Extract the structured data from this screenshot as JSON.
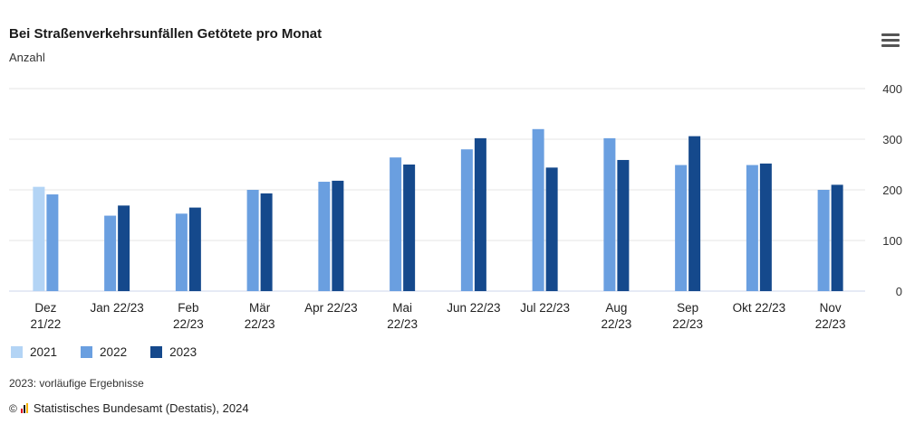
{
  "header": {
    "title": "Bei Straßenverkehrsunfällen Getötete pro Monat",
    "subtitle": "Anzahl"
  },
  "menu_icon": "hamburger-menu-icon",
  "chart_data": {
    "type": "bar",
    "categories": [
      [
        "Dez",
        "21/22"
      ],
      [
        "Jan 22/23"
      ],
      [
        "Feb",
        "22/23"
      ],
      [
        "Mär",
        "22/23"
      ],
      [
        "Apr 22/23"
      ],
      [
        "Mai",
        "22/23"
      ],
      [
        "Jun 22/23"
      ],
      [
        "Jul 22/23"
      ],
      [
        "Aug",
        "22/23"
      ],
      [
        "Sep",
        "22/23"
      ],
      [
        "Okt 22/23"
      ],
      [
        "Nov",
        "22/23"
      ]
    ],
    "series": [
      {
        "name": "2021",
        "color": "#b3d4f5",
        "values": [
          206,
          null,
          null,
          null,
          null,
          null,
          null,
          null,
          null,
          null,
          null,
          null
        ]
      },
      {
        "name": "2022",
        "color": "#6a9fe0",
        "values": [
          191,
          149,
          153,
          200,
          216,
          264,
          280,
          320,
          302,
          249,
          249,
          200
        ]
      },
      {
        "name": "2023",
        "color": "#15498c",
        "values": [
          null,
          169,
          165,
          193,
          218,
          250,
          302,
          244,
          259,
          306,
          252,
          210
        ]
      }
    ],
    "ylim": [
      0,
      400
    ],
    "yticks": [
      0,
      100,
      200,
      300,
      400
    ],
    "y_axis_position": "right",
    "grid": true,
    "legend": "bottom-left"
  },
  "note": "2023: vorläufige Ergebnisse",
  "source": {
    "copyright": "©",
    "text": "Statistisches Bundesamt (Destatis), 2024"
  }
}
